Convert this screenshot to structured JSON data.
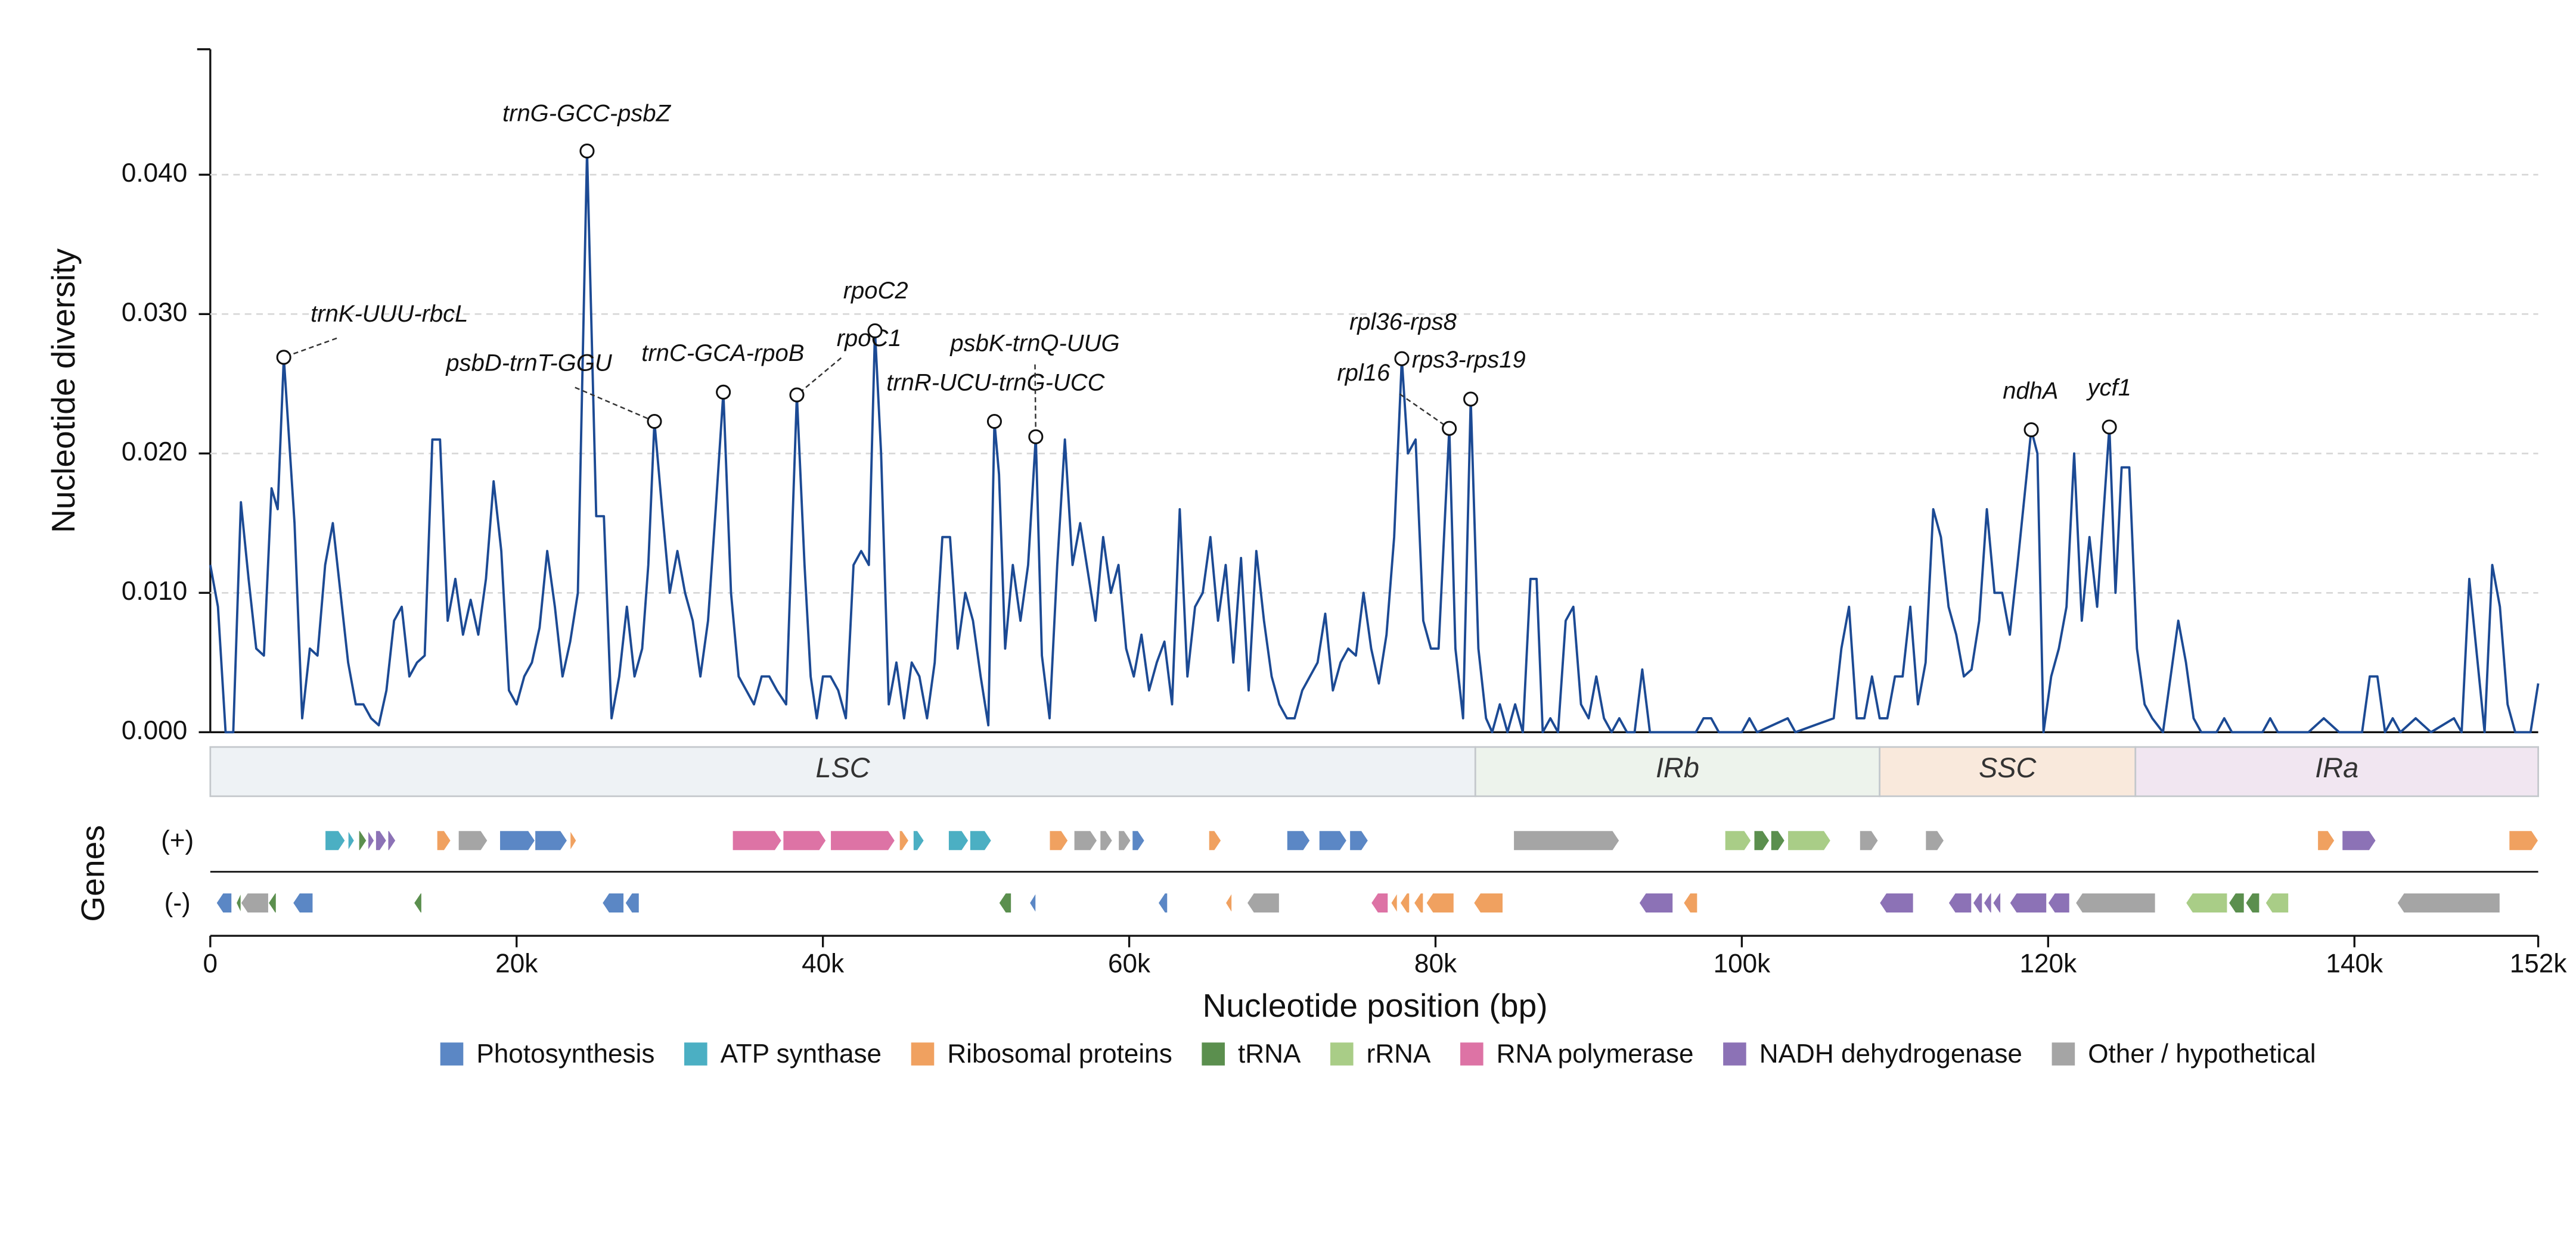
{
  "chart_data": {
    "type": "line",
    "y_label": "Nucleotide diversity",
    "x_label": "Nucleotide position (bp)",
    "genes_label": "Genes",
    "strand_labels": [
      "(+)",
      "(-)"
    ],
    "color": "#1c4a94",
    "grid": true,
    "xlim": [
      0,
      152000
    ],
    "ylim": [
      0,
      0.049
    ],
    "xticks": [
      0,
      {
        "value": 20000,
        "label": "20k"
      },
      {
        "value": 40000,
        "label": "40k"
      },
      {
        "value": 60000,
        "label": "60k"
      },
      {
        "value": 80000,
        "label": "80k"
      },
      {
        "value": 100000,
        "label": "100k"
      },
      {
        "value": 120000,
        "label": "120k"
      },
      {
        "value": 140000,
        "label": "140k"
      },
      {
        "value": 152000,
        "label": "152k"
      }
    ],
    "yticks": [
      {
        "value": 0,
        "label": "0.000"
      },
      {
        "value": 0.01,
        "label": "0.010"
      },
      {
        "value": 0.02,
        "label": "0.020"
      },
      {
        "value": 0.03,
        "label": "0.030"
      },
      {
        "value": 0.04,
        "label": "0.040"
      }
    ],
    "x": [
      0,
      500,
      1000,
      1500,
      2000,
      2500,
      3000,
      3500,
      4000,
      4400,
      4800,
      5500,
      6000,
      6500,
      7000,
      7500,
      8000,
      8500,
      9000,
      9500,
      10000,
      10500,
      11000,
      11500,
      12000,
      12500,
      13000,
      13500,
      14000,
      14500,
      15000,
      15500,
      16000,
      16500,
      17000,
      17500,
      18000,
      18500,
      19000,
      19500,
      20000,
      20500,
      21000,
      21500,
      22000,
      22500,
      23000,
      23500,
      24000,
      24600,
      25200,
      25700,
      26200,
      26700,
      27200,
      27700,
      28200,
      28600,
      29000,
      29500,
      30000,
      30500,
      31000,
      31500,
      32000,
      32500,
      33000,
      33500,
      34000,
      34500,
      35000,
      35500,
      36000,
      36500,
      37000,
      37600,
      38300,
      38800,
      39200,
      39600,
      40000,
      40500,
      41000,
      41500,
      42000,
      42500,
      43000,
      43400,
      43800,
      44300,
      44800,
      45300,
      45800,
      46300,
      46800,
      47300,
      47800,
      48300,
      48800,
      49300,
      49800,
      50300,
      50800,
      51200,
      51500,
      51900,
      52400,
      52900,
      53400,
      53900,
      54300,
      54800,
      55300,
      55800,
      56300,
      56800,
      57300,
      57800,
      58300,
      58800,
      59300,
      59800,
      60300,
      60800,
      61300,
      61800,
      62300,
      62800,
      63300,
      63800,
      64300,
      64800,
      65300,
      65800,
      66300,
      66800,
      67300,
      67800,
      68300,
      68800,
      69300,
      69800,
      70300,
      70800,
      71300,
      71800,
      72300,
      72800,
      73300,
      73800,
      74300,
      74800,
      75300,
      75800,
      76300,
      76800,
      77300,
      77800,
      78200,
      78700,
      79200,
      79700,
      80200,
      80900,
      81300,
      81800,
      82300,
      82800,
      83300,
      83700,
      84200,
      84700,
      85200,
      85700,
      86200,
      86600,
      87000,
      87500,
      88000,
      88500,
      89000,
      89500,
      90000,
      90500,
      91000,
      91500,
      92000,
      92500,
      93000,
      93500,
      94000,
      95000,
      96000,
      97000,
      97500,
      98000,
      98500,
      100000,
      100500,
      101000,
      103000,
      103500,
      106000,
      106500,
      107000,
      107500,
      108000,
      108500,
      109000,
      109500,
      110000,
      110500,
      111000,
      111500,
      112000,
      112500,
      113000,
      113500,
      114000,
      114500,
      115000,
      115500,
      116000,
      116500,
      117000,
      117500,
      118000,
      118900,
      119300,
      119700,
      120200,
      120700,
      121200,
      121700,
      122200,
      122700,
      123200,
      124000,
      124400,
      124800,
      125300,
      125800,
      126300,
      126800,
      127500,
      128500,
      129000,
      129500,
      130000,
      131000,
      131500,
      132000,
      134000,
      134500,
      135000,
      137000,
      138000,
      139000,
      140500,
      141000,
      141500,
      142000,
      142500,
      143000,
      144000,
      145000,
      146500,
      147000,
      147500,
      148000,
      148500,
      149000,
      149500,
      150000,
      150500,
      151500,
      152000
    ],
    "values": [
      0.012,
      0.009,
      0,
      0,
      0.0165,
      0.011,
      0.006,
      0.0055,
      0.0175,
      0.016,
      0.0269,
      0.015,
      0.001,
      0.006,
      0.0055,
      0.012,
      0.015,
      0.01,
      0.005,
      0.002,
      0.002,
      0.001,
      0.0005,
      0.003,
      0.008,
      0.009,
      0.004,
      0.005,
      0.0055,
      0.021,
      0.021,
      0.008,
      0.011,
      0.007,
      0.0095,
      0.007,
      0.011,
      0.018,
      0.013,
      0.003,
      0.002,
      0.004,
      0.005,
      0.0075,
      0.013,
      0.009,
      0.004,
      0.0065,
      0.01,
      0.0417,
      0.0155,
      0.0155,
      0.001,
      0.004,
      0.009,
      0.004,
      0.006,
      0.012,
      0.0223,
      0.016,
      0.01,
      0.013,
      0.01,
      0.008,
      0.004,
      0.008,
      0.016,
      0.0244,
      0.01,
      0.004,
      0.003,
      0.002,
      0.004,
      0.004,
      0.003,
      0.002,
      0.0242,
      0.012,
      0.004,
      0.001,
      0.004,
      0.004,
      0.003,
      0.001,
      0.012,
      0.013,
      0.012,
      0.0288,
      0.02,
      0.002,
      0.005,
      0.001,
      0.005,
      0.004,
      0.001,
      0.005,
      0.014,
      0.014,
      0.006,
      0.01,
      0.008,
      0.004,
      0.0005,
      0.0223,
      0.0185,
      0.006,
      0.012,
      0.008,
      0.012,
      0.0212,
      0.0055,
      0.001,
      0.012,
      0.021,
      0.012,
      0.015,
      0.0115,
      0.008,
      0.014,
      0.01,
      0.012,
      0.006,
      0.004,
      0.007,
      0.003,
      0.005,
      0.0065,
      0.002,
      0.016,
      0.004,
      0.009,
      0.01,
      0.014,
      0.008,
      0.012,
      0.005,
      0.0125,
      0.003,
      0.013,
      0.008,
      0.004,
      0.002,
      0.001,
      0.001,
      0.003,
      0.004,
      0.005,
      0.0085,
      0.003,
      0.005,
      0.006,
      0.0055,
      0.01,
      0.006,
      0.0035,
      0.007,
      0.014,
      0.0268,
      0.02,
      0.021,
      0.008,
      0.006,
      0.006,
      0.0218,
      0.006,
      0.001,
      0.0239,
      0.006,
      0.001,
      0,
      0.002,
      0,
      0.002,
      0,
      0.011,
      0.011,
      0,
      0.001,
      0,
      0.008,
      0.009,
      0.002,
      0.001,
      0.004,
      0.001,
      0,
      0.001,
      0,
      0,
      0.0045,
      0,
      0,
      0,
      0,
      0.001,
      0.001,
      0,
      0,
      0.001,
      0,
      0.001,
      0,
      0.001,
      0.006,
      0.009,
      0.001,
      0.001,
      0.004,
      0.001,
      0.001,
      0.004,
      0.004,
      0.009,
      0.002,
      0.005,
      0.016,
      0.014,
      0.009,
      0.007,
      0.004,
      0.0045,
      0.008,
      0.016,
      0.01,
      0.01,
      0.007,
      0.012,
      0.0217,
      0.02,
      0,
      0.004,
      0.006,
      0.009,
      0.02,
      0.008,
      0.014,
      0.009,
      0.0219,
      0.01,
      0.019,
      0.019,
      0.006,
      0.002,
      0.001,
      0,
      0.008,
      0.005,
      0.001,
      0,
      0,
      0.001,
      0,
      0,
      0.001,
      0,
      0,
      0.001,
      0,
      0,
      0.004,
      0.004,
      0,
      0.001,
      0,
      0.001,
      0,
      0.001,
      0,
      0.011,
      0.0055,
      0,
      0.012,
      0.009,
      0.002,
      0,
      0,
      0.0035
    ],
    "annotations": [
      {
        "label": "trnK-UUU-rbcL",
        "x": 4800,
        "y": 0.0269
      },
      {
        "label": "trnG-GCC-psbZ",
        "x": 24600,
        "y": 0.0417
      },
      {
        "label": "psbD-trnT-GGU",
        "x": 29000,
        "y": 0.0223
      },
      {
        "label": "trnC-GCA-rpoB",
        "x": 33500,
        "y": 0.0244
      },
      {
        "label": "rpoC1",
        "x": 38300,
        "y": 0.0242
      },
      {
        "label": "rpoC2",
        "x": 43400,
        "y": 0.0288
      },
      {
        "label": "trnR-UCU-trnG-UCC",
        "x": 51200,
        "y": 0.0223
      },
      {
        "label": "psbK-trnQ-UUG",
        "x": 53900,
        "y": 0.0212
      },
      {
        "label": "rpl16",
        "x": 80900,
        "y": 0.0218
      },
      {
        "label": "rpl36-rps8",
        "x": 77800,
        "y": 0.0268
      },
      {
        "label": "rps3-rps19",
        "x": 82300,
        "y": 0.0239
      },
      {
        "label": "ndhA",
        "x": 118900,
        "y": 0.0217
      },
      {
        "label": "ycf1",
        "x": 124000,
        "y": 0.0219
      }
    ],
    "regions": [
      {
        "name": "LSC",
        "start": 0,
        "end": 82600,
        "color": "#eef2f5"
      },
      {
        "name": "IRb",
        "start": 82600,
        "end": 109000,
        "color": "#edf3ec"
      },
      {
        "name": "SSC",
        "start": 109000,
        "end": 125700,
        "color": "#f9e9dc"
      },
      {
        "name": "IRa",
        "start": 125700,
        "end": 152000,
        "color": "#f1e6f1"
      }
    ],
    "gene_categories": [
      {
        "name": "Photosynthesis",
        "color": "#5b87c5"
      },
      {
        "name": "ATP synthase",
        "color": "#4bafc3"
      },
      {
        "name": "Ribosomal proteins",
        "color": "#f0a160"
      },
      {
        "name": "tRNA",
        "color": "#5b8f4e"
      },
      {
        "name": "rRNA",
        "color": "#a9cd87"
      },
      {
        "name": "RNA polymerase",
        "color": "#dd73a5"
      },
      {
        "name": "NADH dehydrogenase",
        "color": "#8c72b6"
      },
      {
        "name": "Other / hypothetical",
        "color": "#a5a5a5"
      }
    ],
    "genes_plus": [
      [
        7500,
        8800,
        1
      ],
      [
        9000,
        9400,
        1
      ],
      [
        9700,
        10200,
        3
      ],
      [
        10300,
        10700,
        6
      ],
      [
        10800,
        11500,
        6
      ],
      [
        11600,
        12100,
        6
      ],
      [
        14800,
        15700,
        2
      ],
      [
        16200,
        18100,
        7
      ],
      [
        18900,
        21200,
        0
      ],
      [
        21200,
        23300,
        0
      ],
      [
        23500,
        23900,
        2
      ],
      [
        34100,
        37300,
        5
      ],
      [
        37400,
        40200,
        5
      ],
      [
        40500,
        44700,
        5
      ],
      [
        45000,
        45600,
        2
      ],
      [
        45900,
        46600,
        1
      ],
      [
        48200,
        49500,
        1
      ],
      [
        49600,
        51000,
        1
      ],
      [
        54800,
        56000,
        2
      ],
      [
        56400,
        57900,
        7
      ],
      [
        58100,
        58900,
        7
      ],
      [
        59300,
        60100,
        7
      ],
      [
        60200,
        61000,
        0
      ],
      [
        65200,
        66000,
        2
      ],
      [
        70300,
        71800,
        0
      ],
      [
        72400,
        74200,
        0
      ],
      [
        74400,
        75600,
        0
      ],
      [
        85100,
        92000,
        7
      ],
      [
        98900,
        100600,
        4
      ],
      [
        100800,
        101800,
        3
      ],
      [
        101900,
        102800,
        3
      ],
      [
        103000,
        105800,
        4
      ],
      [
        107700,
        108900,
        7
      ],
      [
        112000,
        113200,
        7
      ],
      [
        137600,
        138700,
        2
      ],
      [
        139200,
        141400,
        6
      ],
      [
        150100,
        152000,
        2
      ]
    ],
    "genes_minus": [
      [
        400,
        1400,
        0
      ],
      [
        1700,
        2000,
        3
      ],
      [
        2000,
        3800,
        7
      ],
      [
        3800,
        4300,
        3
      ],
      [
        5400,
        6700,
        0
      ],
      [
        13300,
        13800,
        3
      ],
      [
        25600,
        27000,
        0
      ],
      [
        27100,
        28000,
        0
      ],
      [
        51500,
        52300,
        3
      ],
      [
        53500,
        53900,
        0
      ],
      [
        61900,
        62500,
        0
      ],
      [
        66300,
        66700,
        2
      ],
      [
        67700,
        69800,
        7
      ],
      [
        75800,
        76900,
        5
      ],
      [
        77100,
        77500,
        2
      ],
      [
        77700,
        78300,
        2
      ],
      [
        78600,
        79200,
        2
      ],
      [
        79400,
        81200,
        2
      ],
      [
        82500,
        84400,
        2
      ],
      [
        93300,
        95500,
        6
      ],
      [
        96200,
        97100,
        2
      ],
      [
        109000,
        111200,
        6
      ],
      [
        113500,
        115000,
        6
      ],
      [
        115100,
        115700,
        6
      ],
      [
        115800,
        116300,
        6
      ],
      [
        116400,
        116900,
        6
      ],
      [
        117500,
        119900,
        6
      ],
      [
        120000,
        121400,
        6
      ],
      [
        121800,
        127000,
        7
      ],
      [
        129000,
        131700,
        4
      ],
      [
        131800,
        132800,
        3
      ],
      [
        132900,
        133800,
        3
      ],
      [
        134200,
        135700,
        4
      ],
      [
        142800,
        149500,
        7
      ]
    ]
  }
}
